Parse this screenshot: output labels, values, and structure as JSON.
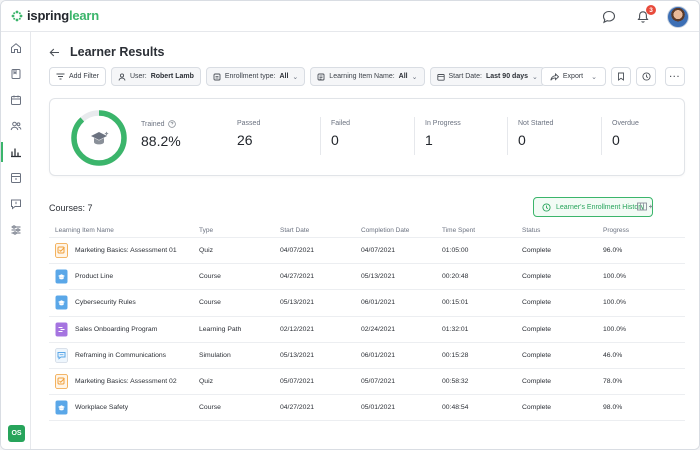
{
  "app": {
    "brand_part1": "ispring",
    "brand_part2": "learn"
  },
  "header": {
    "notification_count": "3"
  },
  "sidebar": {
    "items": [
      {
        "icon": "home-icon"
      },
      {
        "icon": "book-icon"
      },
      {
        "icon": "calendar-icon"
      },
      {
        "icon": "users-icon"
      },
      {
        "icon": "reports-icon",
        "active": true
      },
      {
        "icon": "tasks-icon"
      },
      {
        "icon": "feedback-icon"
      },
      {
        "icon": "settings-icon"
      }
    ],
    "user_initials": "OS"
  },
  "page": {
    "title": "Learner Results"
  },
  "filters": {
    "add_filter": "Add Filter",
    "user_label": "User:",
    "user_value": "Robert Lamb",
    "enrollment_label": "Enrollment type:",
    "enrollment_value": "All",
    "item_label": "Learning Item Name:",
    "item_value": "All",
    "date_label": "Start Date:",
    "date_value": "Last 90 days",
    "export_label": "Export"
  },
  "stats": {
    "trained_label": "Trained",
    "trained_value": "88.2%",
    "trained_fraction": 0.882,
    "passed_label": "Passed",
    "passed_value": "26",
    "failed_label": "Failed",
    "failed_value": "0",
    "in_progress_label": "In Progress",
    "in_progress_value": "1",
    "not_started_label": "Not Started",
    "not_started_value": "0",
    "overdue_label": "Overdue",
    "overdue_value": "0"
  },
  "courses": {
    "label": "Courses: 7",
    "history_button": "Learner's Enrollment History"
  },
  "table": {
    "headers": [
      "Learning Item Name",
      "Type",
      "Start Date",
      "Completion Date",
      "Time Spent",
      "Status",
      "Progress"
    ],
    "rows": [
      {
        "name": "Marketing Basics: Assessment 01",
        "type": "Quiz",
        "start": "04/07/2021",
        "completion": "04/07/2021",
        "time": "01:05:00",
        "status": "Complete",
        "progress": "96.0%",
        "kind": "quiz"
      },
      {
        "name": "Product Line",
        "type": "Course",
        "start": "04/27/2021",
        "completion": "05/13/2021",
        "time": "00:20:48",
        "status": "Complete",
        "progress": "100.0%",
        "kind": "course"
      },
      {
        "name": "Cybersecurity Rules",
        "type": "Course",
        "start": "05/13/2021",
        "completion": "06/01/2021",
        "time": "00:15:01",
        "status": "Complete",
        "progress": "100.0%",
        "kind": "course"
      },
      {
        "name": "Sales Onboarding Program",
        "type": "Learning Path",
        "start": "02/12/2021",
        "completion": "02/24/2021",
        "time": "01:32:01",
        "status": "Complete",
        "progress": "100.0%",
        "kind": "path"
      },
      {
        "name": "Reframing in Communications",
        "type": "Simulation",
        "start": "05/13/2021",
        "completion": "06/01/2021",
        "time": "00:15:28",
        "status": "Complete",
        "progress": "46.0%",
        "kind": "simulation"
      },
      {
        "name": "Marketing Basics: Assessment 02",
        "type": "Quiz",
        "start": "05/07/2021",
        "completion": "05/07/2021",
        "time": "00:58:32",
        "status": "Complete",
        "progress": "78.0%",
        "kind": "quiz"
      },
      {
        "name": "Workplace Safety",
        "type": "Course",
        "start": "04/27/2021",
        "completion": "05/01/2021",
        "time": "00:48:54",
        "status": "Complete",
        "progress": "98.0%",
        "kind": "course"
      }
    ]
  },
  "colors": {
    "accent": "#3bb56b",
    "donut_track": "#e8eaed",
    "quiz_icon": "#f0a03a",
    "course_icon": "#5aa7e8",
    "path_icon": "#a574e0",
    "simulation_icon": "#5aa7e8"
  }
}
